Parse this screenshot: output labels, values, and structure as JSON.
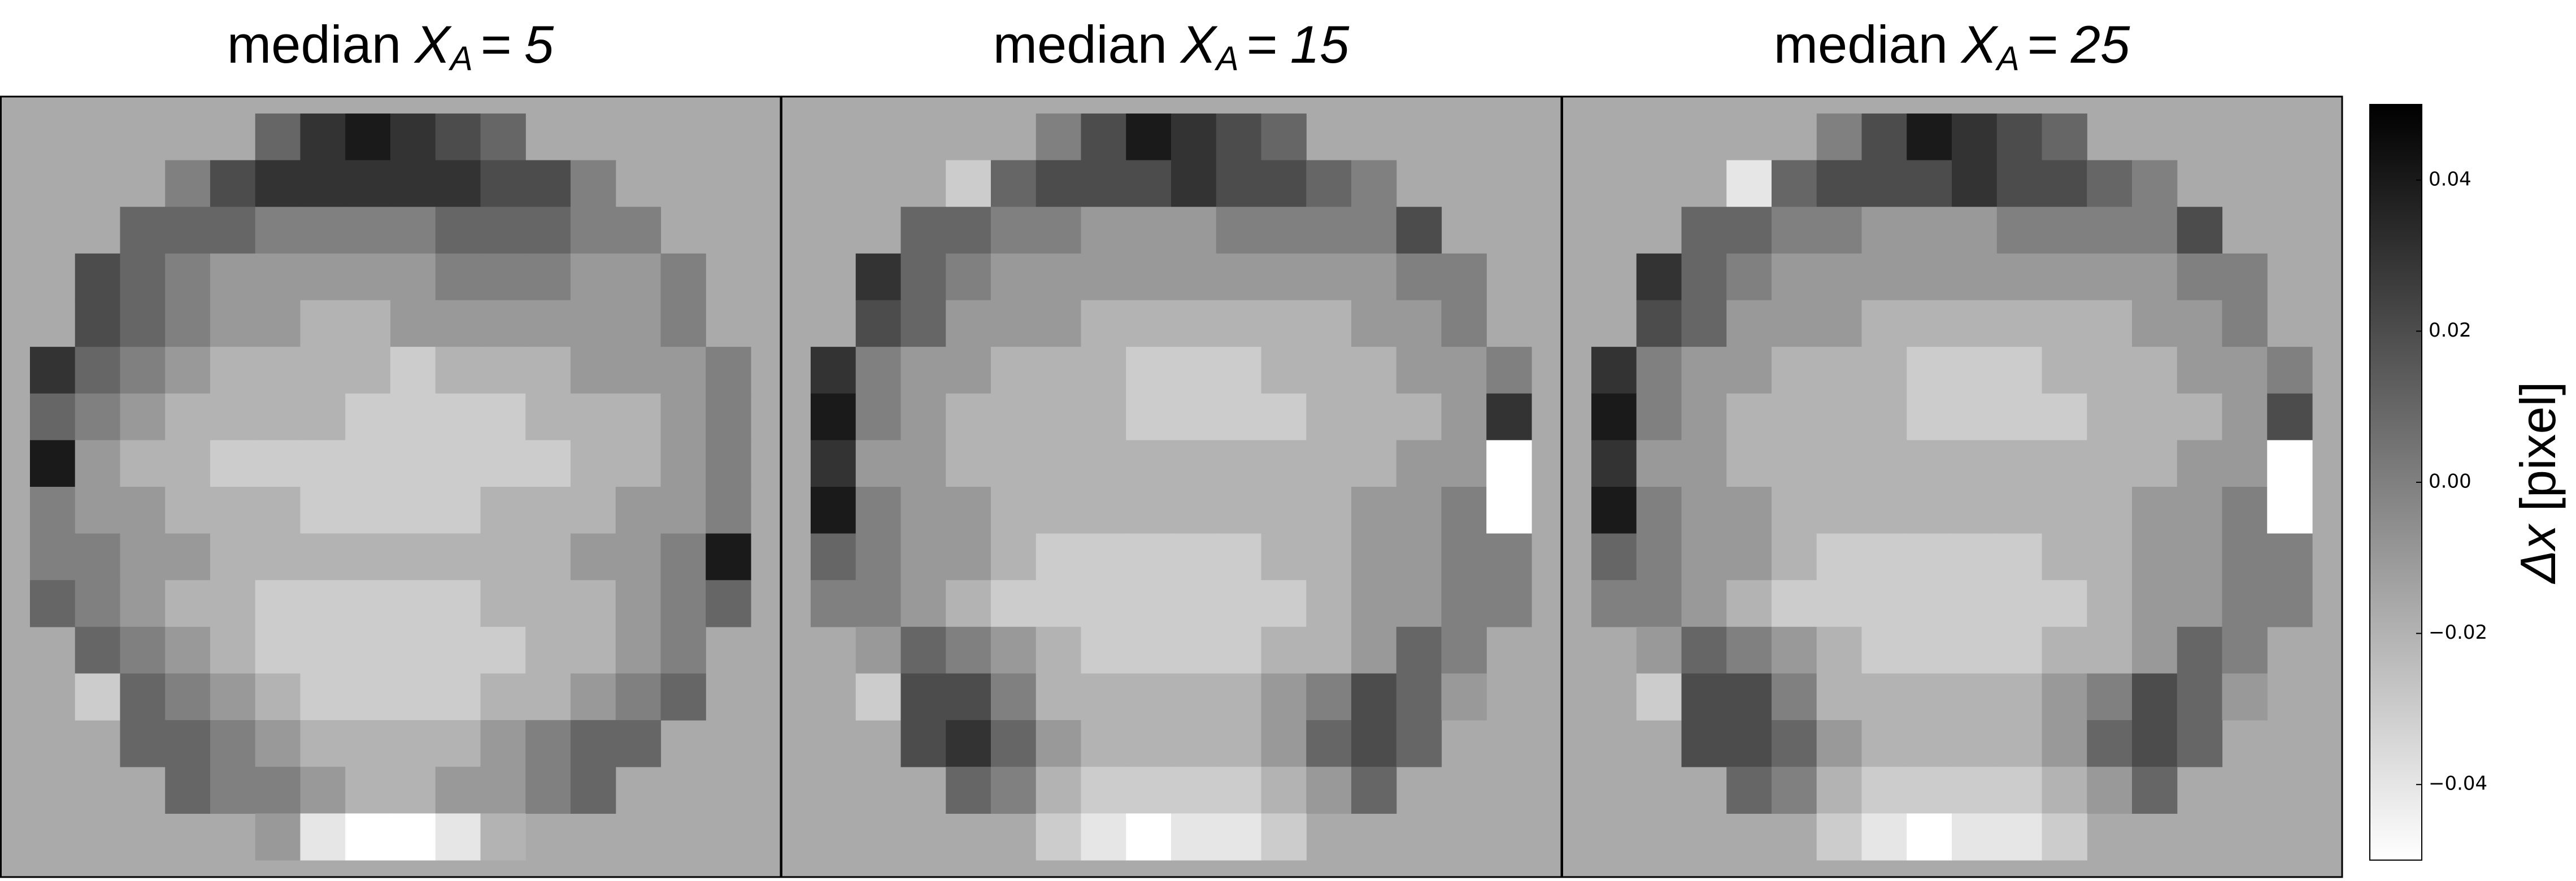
{
  "chart_data": [
    {
      "type": "heatmap",
      "title": "median",
      "symbol": "X",
      "subscript": "A",
      "relation": "=",
      "value": 5,
      "values": [
        [
          null,
          null,
          null,
          null,
          null,
          0.01,
          0.03,
          0.04,
          0.03,
          0.02,
          0.01,
          null,
          null,
          null,
          null,
          null
        ],
        [
          null,
          null,
          null,
          0,
          0.02,
          0.03,
          0.03,
          0.03,
          0.03,
          0.03,
          0.02,
          0.02,
          0,
          null,
          null,
          null
        ],
        [
          null,
          null,
          0.01,
          0.01,
          0.01,
          0,
          0,
          0,
          0,
          0.01,
          0.01,
          0.01,
          0,
          0,
          null,
          null
        ],
        [
          null,
          0.02,
          0.01,
          0,
          -0.01,
          -0.01,
          -0.01,
          -0.01,
          -0.01,
          0,
          0,
          0,
          -0.01,
          -0.01,
          0,
          null
        ],
        [
          null,
          0.02,
          0.01,
          0,
          -0.01,
          -0.01,
          -0.02,
          -0.02,
          -0.01,
          -0.01,
          -0.01,
          -0.01,
          -0.01,
          -0.01,
          0,
          null
        ],
        [
          0.03,
          0.01,
          0,
          -0.01,
          -0.02,
          -0.02,
          -0.02,
          -0.02,
          -0.03,
          -0.02,
          -0.02,
          -0.02,
          -0.01,
          -0.01,
          -0.01,
          0
        ],
        [
          0.01,
          0,
          -0.01,
          -0.02,
          -0.02,
          -0.02,
          -0.02,
          -0.03,
          -0.03,
          -0.03,
          -0.03,
          -0.02,
          -0.02,
          -0.02,
          -0.01,
          0
        ],
        [
          0.04,
          -0.01,
          -0.02,
          -0.02,
          -0.03,
          -0.03,
          -0.03,
          -0.03,
          -0.03,
          -0.03,
          -0.03,
          -0.03,
          -0.02,
          -0.02,
          -0.01,
          0
        ],
        [
          0,
          -0.01,
          -0.01,
          -0.02,
          -0.02,
          -0.02,
          -0.03,
          -0.03,
          -0.03,
          -0.03,
          -0.02,
          -0.02,
          -0.02,
          -0.01,
          -0.01,
          0
        ],
        [
          0,
          0,
          -0.01,
          -0.01,
          -0.02,
          -0.02,
          -0.02,
          -0.02,
          -0.02,
          -0.02,
          -0.02,
          -0.02,
          -0.01,
          -0.01,
          0,
          0.04
        ],
        [
          0.01,
          0,
          -0.01,
          -0.02,
          -0.02,
          -0.03,
          -0.03,
          -0.03,
          -0.03,
          -0.03,
          -0.02,
          -0.02,
          -0.02,
          -0.01,
          0,
          0.01
        ],
        [
          null,
          0.01,
          0,
          -0.01,
          -0.02,
          -0.03,
          -0.03,
          -0.03,
          -0.03,
          -0.03,
          -0.03,
          -0.02,
          -0.02,
          -0.01,
          0,
          null
        ],
        [
          null,
          -0.03,
          0.01,
          0,
          -0.01,
          -0.02,
          -0.03,
          -0.03,
          -0.03,
          -0.03,
          -0.02,
          -0.02,
          -0.01,
          0,
          0.01,
          null
        ],
        [
          null,
          null,
          0.01,
          0.01,
          0,
          -0.01,
          -0.02,
          -0.02,
          -0.02,
          -0.02,
          -0.01,
          0,
          0.01,
          0.01,
          null,
          null
        ],
        [
          null,
          null,
          null,
          0.01,
          0,
          0,
          -0.01,
          -0.02,
          -0.02,
          -0.01,
          -0.01,
          0,
          0.01,
          null,
          null,
          null
        ],
        [
          null,
          null,
          null,
          null,
          null,
          -0.01,
          -0.04,
          -0.05,
          -0.05,
          -0.04,
          -0.02,
          null,
          null,
          null,
          null,
          null
        ]
      ]
    },
    {
      "type": "heatmap",
      "title": "median",
      "symbol": "X",
      "subscript": "A",
      "relation": "=",
      "value": 15,
      "values": [
        [
          null,
          null,
          null,
          null,
          null,
          0,
          0.02,
          0.04,
          0.03,
          0.02,
          0.01,
          null,
          null,
          null,
          null,
          null
        ],
        [
          null,
          null,
          null,
          -0.03,
          0.01,
          0.02,
          0.02,
          0.02,
          0.03,
          0.02,
          0.02,
          0.01,
          0,
          null,
          null,
          null
        ],
        [
          null,
          null,
          0.01,
          0.01,
          0,
          0,
          -0.01,
          -0.01,
          -0.01,
          0,
          0,
          0,
          0,
          0.02,
          null,
          null
        ],
        [
          null,
          0.03,
          0.01,
          0,
          -0.01,
          -0.01,
          -0.01,
          -0.01,
          -0.01,
          -0.01,
          -0.01,
          -0.01,
          -0.01,
          0,
          0,
          null
        ],
        [
          null,
          0.02,
          0.01,
          -0.01,
          -0.01,
          -0.01,
          -0.02,
          -0.02,
          -0.02,
          -0.02,
          -0.02,
          -0.02,
          -0.01,
          -0.01,
          0,
          null
        ],
        [
          0.03,
          0,
          -0.01,
          -0.01,
          -0.02,
          -0.02,
          -0.02,
          -0.03,
          -0.03,
          -0.03,
          -0.02,
          -0.02,
          -0.02,
          -0.01,
          -0.01,
          0
        ],
        [
          0.04,
          0,
          -0.01,
          -0.02,
          -0.02,
          -0.02,
          -0.02,
          -0.03,
          -0.03,
          -0.03,
          -0.03,
          -0.02,
          -0.02,
          -0.02,
          -0.01,
          0.03
        ],
        [
          0.03,
          -0.01,
          -0.01,
          -0.02,
          -0.02,
          -0.02,
          -0.02,
          -0.02,
          -0.02,
          -0.02,
          -0.02,
          -0.02,
          -0.02,
          -0.01,
          -0.01,
          -0.05
        ],
        [
          0.04,
          0,
          -0.01,
          -0.01,
          -0.02,
          -0.02,
          -0.02,
          -0.02,
          -0.02,
          -0.02,
          -0.02,
          -0.02,
          -0.01,
          -0.01,
          0,
          -0.05
        ],
        [
          0.01,
          0,
          -0.01,
          -0.01,
          -0.02,
          -0.03,
          -0.03,
          -0.03,
          -0.03,
          -0.03,
          -0.02,
          -0.02,
          -0.01,
          -0.01,
          0,
          0
        ],
        [
          0,
          0,
          -0.01,
          -0.02,
          -0.03,
          -0.03,
          -0.03,
          -0.03,
          -0.03,
          -0.03,
          -0.03,
          -0.02,
          -0.01,
          -0.01,
          0,
          0
        ],
        [
          null,
          -0.01,
          0.01,
          0,
          -0.01,
          -0.02,
          -0.03,
          -0.03,
          -0.03,
          -0.03,
          -0.02,
          -0.02,
          -0.01,
          0.01,
          0,
          null
        ],
        [
          null,
          -0.03,
          0.02,
          0.02,
          0,
          -0.02,
          -0.02,
          -0.02,
          -0.02,
          -0.02,
          -0.01,
          0,
          0.02,
          0.01,
          -0.01,
          null
        ],
        [
          null,
          null,
          0.02,
          0.03,
          0.01,
          -0.01,
          -0.02,
          -0.02,
          -0.02,
          -0.02,
          -0.01,
          0.01,
          0.02,
          0.01,
          null,
          null
        ],
        [
          null,
          null,
          null,
          0.01,
          0,
          -0.02,
          -0.03,
          -0.03,
          -0.03,
          -0.03,
          -0.02,
          -0.01,
          0.01,
          null,
          null,
          null
        ],
        [
          null,
          null,
          null,
          null,
          null,
          -0.03,
          -0.04,
          -0.05,
          -0.04,
          -0.04,
          -0.03,
          null,
          null,
          null,
          null,
          null
        ]
      ]
    },
    {
      "type": "heatmap",
      "title": "median",
      "symbol": "X",
      "subscript": "A",
      "relation": "=",
      "value": 25,
      "values": [
        [
          null,
          null,
          null,
          null,
          null,
          0,
          0.02,
          0.04,
          0.03,
          0.02,
          0.01,
          null,
          null,
          null,
          null,
          null
        ],
        [
          null,
          null,
          null,
          -0.04,
          0.01,
          0.02,
          0.02,
          0.02,
          0.03,
          0.02,
          0.02,
          0.01,
          0,
          null,
          null,
          null
        ],
        [
          null,
          null,
          0.01,
          0.01,
          0,
          0,
          -0.01,
          -0.01,
          -0.01,
          0,
          0,
          0,
          0,
          0.02,
          null,
          null
        ],
        [
          null,
          0.03,
          0.01,
          0,
          -0.01,
          -0.01,
          -0.01,
          -0.01,
          -0.01,
          -0.01,
          -0.01,
          -0.01,
          -0.01,
          0,
          0,
          null
        ],
        [
          null,
          0.02,
          0.01,
          -0.01,
          -0.01,
          -0.01,
          -0.02,
          -0.02,
          -0.02,
          -0.02,
          -0.02,
          -0.02,
          -0.01,
          -0.01,
          0,
          null
        ],
        [
          0.03,
          0,
          -0.01,
          -0.01,
          -0.02,
          -0.02,
          -0.02,
          -0.03,
          -0.03,
          -0.03,
          -0.02,
          -0.02,
          -0.02,
          -0.01,
          -0.01,
          0
        ],
        [
          0.04,
          0,
          -0.01,
          -0.02,
          -0.02,
          -0.02,
          -0.02,
          -0.03,
          -0.03,
          -0.03,
          -0.03,
          -0.02,
          -0.02,
          -0.02,
          -0.01,
          0.02
        ],
        [
          0.03,
          -0.01,
          -0.01,
          -0.02,
          -0.02,
          -0.02,
          -0.02,
          -0.02,
          -0.02,
          -0.02,
          -0.02,
          -0.02,
          -0.02,
          -0.01,
          -0.01,
          -0.05
        ],
        [
          0.04,
          0,
          -0.01,
          -0.01,
          -0.02,
          -0.02,
          -0.02,
          -0.02,
          -0.02,
          -0.02,
          -0.02,
          -0.02,
          -0.01,
          -0.01,
          0,
          -0.05
        ],
        [
          0.01,
          0,
          -0.01,
          -0.01,
          -0.02,
          -0.03,
          -0.03,
          -0.03,
          -0.03,
          -0.03,
          -0.02,
          -0.02,
          -0.01,
          -0.01,
          0,
          0
        ],
        [
          0,
          0,
          -0.01,
          -0.02,
          -0.03,
          -0.03,
          -0.03,
          -0.03,
          -0.03,
          -0.03,
          -0.03,
          -0.02,
          -0.01,
          -0.01,
          0,
          0
        ],
        [
          null,
          -0.01,
          0.01,
          0,
          -0.01,
          -0.02,
          -0.03,
          -0.03,
          -0.03,
          -0.03,
          -0.02,
          -0.02,
          -0.01,
          0.01,
          0,
          null
        ],
        [
          null,
          -0.03,
          0.02,
          0.02,
          0,
          -0.02,
          -0.02,
          -0.02,
          -0.02,
          -0.02,
          -0.01,
          0,
          0.02,
          0.01,
          -0.01,
          null
        ],
        [
          null,
          null,
          0.02,
          0.02,
          0.01,
          -0.01,
          -0.02,
          -0.02,
          -0.02,
          -0.02,
          -0.01,
          0.01,
          0.02,
          0.01,
          null,
          null
        ],
        [
          null,
          null,
          null,
          0.01,
          0,
          -0.02,
          -0.03,
          -0.03,
          -0.03,
          -0.03,
          -0.02,
          -0.01,
          0.01,
          null,
          null,
          null
        ],
        [
          null,
          null,
          null,
          null,
          null,
          -0.03,
          -0.04,
          -0.05,
          -0.04,
          -0.04,
          -0.03,
          null,
          null,
          null,
          null,
          null
        ]
      ]
    },
    {
      "type": "colorbar",
      "label_symbol": "Δx",
      "label_unit": "[pixel]",
      "cmap": "gray_r",
      "missing_color": "#aaaaaa",
      "ylim": [
        -0.05,
        0.05
      ],
      "yticks": [
        0.04,
        0.02,
        {
          "value": 0,
          "label": "0.00"
        },
        {
          "value": -0.02,
          "label": "−0.02"
        },
        {
          "value": -0.04,
          "label": "−0.04"
        }
      ]
    }
  ]
}
